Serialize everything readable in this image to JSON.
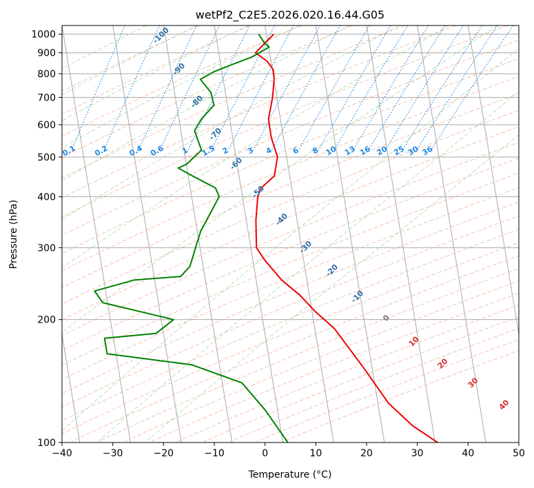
{
  "chart_data": {
    "type": "line",
    "subtype": "skew-T log-P diagram",
    "title": "wetPf2_C2E5.2026.020.16.44.G05",
    "xlabel": "Temperature (°C)",
    "ylabel": "Pressure (hPa)",
    "xlim": [
      -40,
      50
    ],
    "ylim": [
      1050,
      100
    ],
    "y_scale": "log",
    "grid": true,
    "x_ticks": [
      -40,
      -30,
      -20,
      -10,
      0,
      10,
      20,
      30,
      40,
      50
    ],
    "x_tick_labels": [
      "−40",
      "−30",
      "−20",
      "−10",
      "0",
      "10",
      "20",
      "30",
      "40",
      "50"
    ],
    "y_ticks": [
      1000,
      900,
      800,
      700,
      600,
      500,
      400,
      300,
      200,
      100
    ],
    "y_tick_labels": [
      "1000",
      "900",
      "800",
      "700",
      "600",
      "500",
      "400",
      "300",
      "200",
      "100"
    ],
    "dry_adiabat_labels": [
      "-100",
      "-90",
      "-80",
      "-70",
      "-60",
      "-50",
      "-40",
      "-30",
      "-20",
      "-10"
    ],
    "mixing_ratio_labels": [
      "0.1",
      "0.2",
      "0.4",
      "0.6",
      "1",
      "1.5",
      "2",
      "3",
      "4",
      "6",
      "8",
      "10",
      "13",
      "16",
      "20",
      "25",
      "30",
      "36"
    ],
    "moist_adiabat_labels": [
      "0",
      "10",
      "20",
      "30",
      "40"
    ],
    "series": [
      {
        "color": "#ee0000",
        "x": [
          -11.5,
          -13.0,
          -14.5,
          -12.0,
          -10.5,
          -10.0,
          -9.7,
          -9.8,
          -8.7,
          -6.8,
          -6.8,
          -9.0,
          -9.4,
          -9.0,
          -8.0,
          -6.0,
          -2.0,
          2.0,
          5.5,
          10.0,
          17.5,
          23.0,
          28.5,
          34.0
        ],
        "y": [
          1000,
          950,
          900,
          860,
          820,
          780,
          700,
          620,
          560,
          500,
          450,
          420,
          400,
          350,
          300,
          280,
          250,
          230,
          210,
          190,
          150,
          125,
          110,
          100
        ]
      },
      {
        "color": "#008000",
        "x": [
          -14.5,
          -13.0,
          -12.0,
          -15.0,
          -19.0,
          -22.0,
          -24.5,
          -22.0,
          -21.0,
          -23.0,
          -24.0,
          -22.0,
          -24.5,
          -26.0,
          -23.0,
          -18.0,
          -17.0,
          -18.0,
          -19.5,
          -20.0,
          -20.5,
          -22.0,
          -31.0,
          -38.5,
          -36.5,
          -22.0,
          -25.0,
          -35.0,
          -34.0,
          -17.0,
          -6.5,
          -1.0,
          4.5
        ],
        "y": [
          1000,
          950,
          930,
          880,
          840,
          810,
          775,
          720,
          670,
          620,
          580,
          520,
          480,
          470,
          450,
          420,
          400,
          370,
          330,
          300,
          270,
          255,
          250,
          235,
          220,
          200,
          185,
          180,
          165,
          155,
          140,
          120,
          100
        ]
      }
    ]
  }
}
